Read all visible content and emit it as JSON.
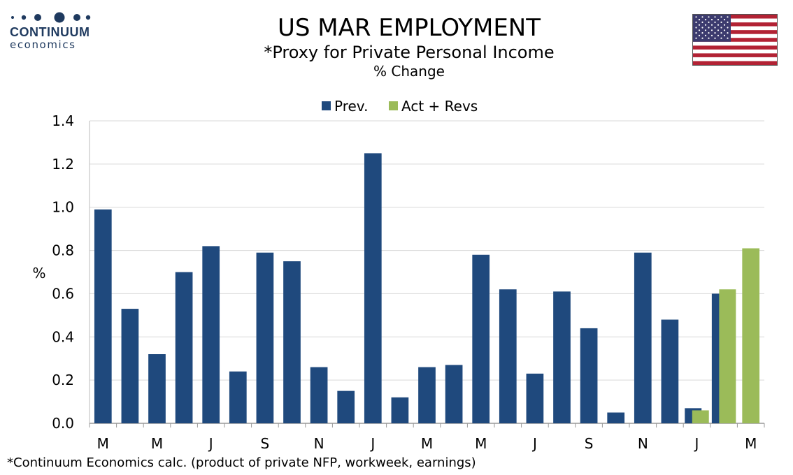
{
  "logo": {
    "name": "CONTINUUM",
    "sub": "economics"
  },
  "header": {
    "title": "US MAR EMPLOYMENT",
    "subtitle": "*Proxy for Private Personal Income",
    "unit_line": "% Change"
  },
  "footnote": "*Continuum Economics calc. (product of private NFP, workweek, earnings)",
  "colors": {
    "prev": "#1f497d",
    "act": "#9bbb59",
    "grid": "#d9d9d9",
    "logo": "#1f3a5f"
  },
  "flag_icon": "us-flag-icon",
  "chart_data": {
    "type": "bar",
    "ylabel": "%",
    "ylim": [
      0,
      1.4
    ],
    "yticks": [
      "0.0",
      "0.2",
      "0.4",
      "0.6",
      "0.8",
      "1.0",
      "1.2",
      "1.4"
    ],
    "grid": true,
    "legend_position": "top-center",
    "categories": [
      "M",
      "",
      "M",
      "",
      "J",
      "",
      "S",
      "",
      "N",
      "",
      "J",
      "",
      "M",
      "",
      "M",
      "",
      "J",
      "",
      "S",
      "",
      "N",
      "",
      "J",
      "",
      "M"
    ],
    "series": [
      {
        "name": "Prev.",
        "values": [
          0.99,
          0.53,
          0.32,
          0.7,
          0.82,
          0.24,
          0.79,
          0.75,
          0.26,
          0.15,
          1.25,
          0.12,
          0.26,
          0.27,
          0.78,
          0.62,
          0.23,
          0.61,
          0.44,
          0.05,
          0.79,
          0.48,
          0.07,
          0.6,
          null
        ]
      },
      {
        "name": "Act + Revs",
        "values": [
          null,
          null,
          null,
          null,
          null,
          null,
          null,
          null,
          null,
          null,
          null,
          null,
          null,
          null,
          null,
          null,
          null,
          null,
          null,
          null,
          null,
          null,
          0.06,
          0.62,
          0.81
        ]
      }
    ]
  }
}
